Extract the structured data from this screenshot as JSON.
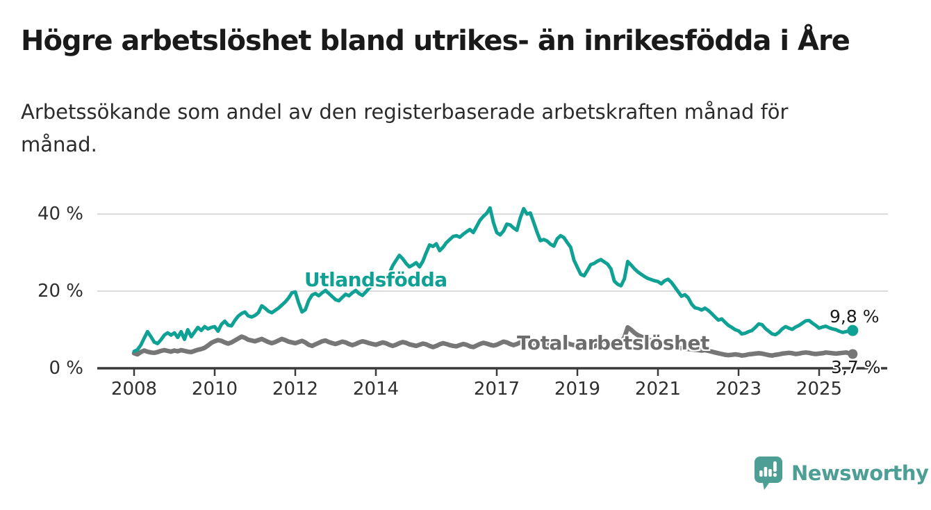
{
  "header": {
    "title": "Högre arbetslöshet bland utrikes- än inrikesfödda i Åre",
    "subtitle": "Arbetssökande som andel av den registerbaserade arbetskraften månad för månad."
  },
  "branding": {
    "logo_text": "Newsworthy",
    "logo_icon": "bar-chart-speech-bubble",
    "brand_color": "#4d9e94"
  },
  "chart_data": {
    "type": "line",
    "title": "Högre arbetslöshet bland utrikes- än inrikesfödda i Åre",
    "subtitle": "Arbetssökande som andel av den registerbaserade arbetskraften månad för månad.",
    "unit": "%",
    "grid": "horizontal",
    "legend_position": "inline-labels",
    "x_start_year": 2008,
    "x_step_months": 1,
    "x_end": "2025-11",
    "x_tick_years": [
      2008,
      2010,
      2012,
      2014,
      2017,
      2019,
      2021,
      2023,
      2025
    ],
    "y_ticks": [
      {
        "value": 0,
        "label": "0 %"
      },
      {
        "value": 20,
        "label": "20 %"
      },
      {
        "value": 40,
        "label": "40 %"
      }
    ],
    "ylim": [
      0,
      44
    ],
    "colors": {
      "grid": "#dadada",
      "axis": "#3a3a3a"
    },
    "series": [
      {
        "name": "Utlandsfödda",
        "color": "#10a195",
        "end_label": "9,8 %",
        "end_value": 9.8,
        "values": [
          4.4,
          4.8,
          6.0,
          7.8,
          9.5,
          8.2,
          6.8,
          6.4,
          7.4,
          8.6,
          9.2,
          8.6,
          9.2,
          8.0,
          9.5,
          7.5,
          10.0,
          8.2,
          9.4,
          10.6,
          9.8,
          10.8,
          10.2,
          10.6,
          10.8,
          9.6,
          11.4,
          12.2,
          11.2,
          11.0,
          12.4,
          13.5,
          14.2,
          14.6,
          13.6,
          13.3,
          13.7,
          14.4,
          16.2,
          15.6,
          14.8,
          14.4,
          15.0,
          15.6,
          16.4,
          17.2,
          18.2,
          19.6,
          19.8,
          17.0,
          14.6,
          15.2,
          17.6,
          19.0,
          19.4,
          18.8,
          19.6,
          20.2,
          19.4,
          18.6,
          17.8,
          17.5,
          18.4,
          19.2,
          18.8,
          19.6,
          20.2,
          19.4,
          18.9,
          19.8,
          20.8,
          21.6,
          22.0,
          21.4,
          22.4,
          23.4,
          24.6,
          26.6,
          28.0,
          29.3,
          28.4,
          27.2,
          26.3,
          26.8,
          27.4,
          26.3,
          27.8,
          30.0,
          32.0,
          31.6,
          32.3,
          30.5,
          31.4,
          32.6,
          33.4,
          34.2,
          34.4,
          34.0,
          34.8,
          35.4,
          36.0,
          35.2,
          36.8,
          38.4,
          39.4,
          40.2,
          41.6,
          37.8,
          35.2,
          34.6,
          35.6,
          37.4,
          37.2,
          36.4,
          35.8,
          39.0,
          41.4,
          40.0,
          40.3,
          37.8,
          35.3,
          33.1,
          33.4,
          33.0,
          32.2,
          31.7,
          33.6,
          34.4,
          33.9,
          32.6,
          31.4,
          28.0,
          26.2,
          24.4,
          24.0,
          25.4,
          26.9,
          27.2,
          27.8,
          28.2,
          27.6,
          27.0,
          25.8,
          22.6,
          21.8,
          21.4,
          23.2,
          27.7,
          26.8,
          25.8,
          25.0,
          24.4,
          23.8,
          23.3,
          23.0,
          22.7,
          22.5,
          21.9,
          22.7,
          23.1,
          22.3,
          21.1,
          19.9,
          18.7,
          19.1,
          18.3,
          16.7,
          15.7,
          15.5,
          15.1,
          15.6,
          15.0,
          14.2,
          13.3,
          12.5,
          12.8,
          11.9,
          11.1,
          10.6,
          10.0,
          9.7,
          8.9,
          9.1,
          9.5,
          9.8,
          10.6,
          11.5,
          11.3,
          10.3,
          9.6,
          8.9,
          8.7,
          9.3,
          10.2,
          10.8,
          10.4,
          10.1,
          10.7,
          11.1,
          11.7,
          12.3,
          12.4,
          11.7,
          11.1,
          10.4,
          10.7,
          10.9,
          10.5,
          10.2,
          10.0,
          9.6,
          9.3,
          9.5,
          9.7,
          9.8
        ]
      },
      {
        "name": "Total arbetslöshet",
        "color": "#767676",
        "end_label": "3,7 %",
        "end_value": 3.7,
        "values": [
          3.9,
          3.6,
          4.2,
          4.6,
          4.3,
          4.1,
          4.0,
          4.2,
          4.5,
          4.7,
          4.5,
          4.3,
          4.6,
          4.4,
          4.7,
          4.5,
          4.3,
          4.2,
          4.5,
          4.8,
          5.0,
          5.3,
          5.9,
          6.6,
          7.0,
          7.3,
          7.1,
          6.7,
          6.4,
          6.7,
          7.2,
          7.7,
          8.2,
          7.9,
          7.4,
          7.2,
          7.0,
          7.3,
          7.6,
          7.2,
          6.8,
          6.5,
          6.8,
          7.2,
          7.6,
          7.3,
          6.9,
          6.7,
          6.5,
          6.8,
          7.1,
          6.7,
          6.1,
          5.8,
          6.2,
          6.6,
          7.0,
          7.2,
          6.8,
          6.5,
          6.3,
          6.6,
          6.9,
          6.7,
          6.3,
          6.0,
          6.3,
          6.7,
          7.0,
          6.8,
          6.5,
          6.3,
          6.1,
          6.4,
          6.7,
          6.5,
          6.1,
          5.8,
          6.1,
          6.5,
          6.8,
          6.6,
          6.2,
          6.0,
          5.8,
          6.1,
          6.4,
          6.2,
          5.8,
          5.5,
          5.8,
          6.2,
          6.5,
          6.3,
          6.0,
          5.8,
          5.7,
          6.0,
          6.3,
          6.1,
          5.7,
          5.5,
          5.9,
          6.3,
          6.6,
          6.4,
          6.1,
          5.9,
          6.1,
          6.5,
          6.9,
          6.7,
          6.3,
          6.0,
          6.3,
          6.7,
          7.0,
          6.8,
          6.4,
          6.2,
          6.0,
          6.3,
          6.6,
          6.4,
          6.0,
          5.7,
          6.0,
          6.4,
          6.7,
          6.5,
          6.2,
          6.0,
          5.9,
          6.2,
          6.5,
          6.3,
          5.9,
          5.7,
          6.1,
          6.5,
          6.9,
          6.7,
          6.4,
          6.3,
          6.5,
          6.8,
          8.0,
          10.6,
          10.0,
          9.2,
          8.6,
          8.2,
          7.8,
          7.5,
          7.2,
          7.0,
          6.8,
          6.6,
          6.4,
          6.1,
          5.8,
          5.5,
          5.3,
          5.2,
          5.1,
          5.0,
          4.9,
          4.8,
          4.7,
          4.6,
          4.7,
          4.5,
          4.3,
          4.1,
          3.9,
          3.7,
          3.5,
          3.4,
          3.5,
          3.6,
          3.5,
          3.3,
          3.4,
          3.6,
          3.7,
          3.8,
          3.9,
          3.8,
          3.6,
          3.4,
          3.3,
          3.5,
          3.6,
          3.8,
          3.9,
          4.0,
          3.9,
          3.7,
          3.8,
          4.0,
          4.1,
          4.0,
          3.8,
          3.7,
          3.8,
          3.9,
          4.1,
          4.0,
          3.9,
          3.8,
          3.9,
          4.0,
          4.1,
          3.9,
          3.7
        ]
      }
    ]
  }
}
